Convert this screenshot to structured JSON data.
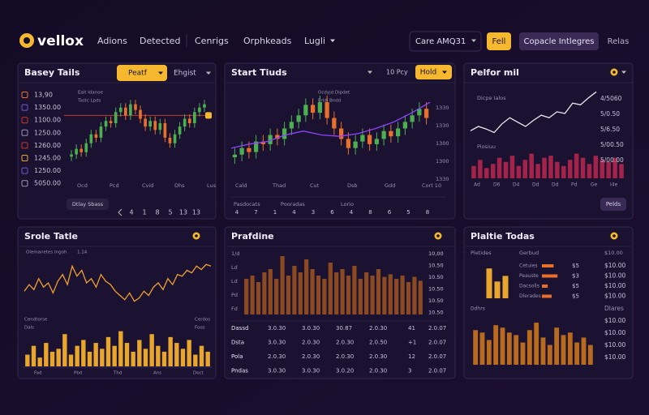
{
  "nav": {
    "brand": "vellox",
    "links": [
      "Adions",
      "Detected",
      "Cenrigs",
      "Orphkeads",
      "Lugli"
    ],
    "select": "Care AMQ31",
    "button": "Fell",
    "cta": "Copacle Intlegres",
    "extra": "Relas"
  },
  "panels": [
    {
      "title": "Basey Tails",
      "button": "Peatf",
      "dropdown": "Ehgist",
      "side_values": [
        "13,90",
        "1350.00",
        "1100.00",
        "1250.00",
        "1260.00",
        "1245.00",
        "1250.00",
        "5050.00"
      ],
      "legend": [
        "Ealt Idanoe",
        "Tastc Lpds"
      ],
      "x_labels": [
        "Ocd",
        "Pcd",
        "Cvid",
        "Dhs",
        "Lus"
      ],
      "footer": "Dtlay Sbass",
      "pages": [
        "4",
        "1",
        "8",
        "5",
        "13",
        "13"
      ],
      "charts": [
        {
          "type": "candle",
          "ylim": [
            0,
            80
          ],
          "up": "#4caf50",
          "down": "#e8702c",
          "level": 55,
          "level_color": "#c0392b",
          "open": [
            18,
            20,
            25,
            22,
            30,
            38,
            35,
            45,
            50,
            48,
            58,
            62,
            55,
            65,
            60,
            52,
            45,
            50,
            42,
            48,
            35,
            30,
            38,
            45,
            52,
            48,
            58,
            62
          ],
          "high": [
            24,
            29,
            29,
            34,
            42,
            42,
            49,
            54,
            54,
            62,
            66,
            66,
            69,
            69,
            64,
            56,
            54,
            54,
            52,
            52,
            39,
            42,
            49,
            56,
            56,
            62,
            66,
            69
          ],
          "low": [
            14,
            16,
            18,
            18,
            26,
            31,
            31,
            41,
            44,
            44,
            54,
            51,
            51,
            56,
            48,
            41,
            41,
            38,
            38,
            31,
            26,
            26,
            34,
            41,
            44,
            44,
            54,
            58
          ],
          "close": [
            20,
            25,
            22,
            30,
            38,
            35,
            45,
            50,
            48,
            58,
            62,
            55,
            65,
            60,
            52,
            45,
            50,
            42,
            48,
            35,
            30,
            38,
            45,
            52,
            48,
            58,
            62,
            65
          ]
        }
      ]
    },
    {
      "title": "Start Tiuds",
      "label": "10 Pcy",
      "button": "Hold",
      "legend": [
        "Ocdyjd Dipdet",
        "Erldi Bndd"
      ],
      "axis_labels": [
        "1330",
        "1330",
        "1300",
        "1300",
        "1330"
      ],
      "x_labels": [
        "Cald",
        "Thad",
        "Cut",
        "Dsb",
        "Gdd",
        "Cort 10"
      ],
      "footer": [
        "Pasdocats",
        "Pooradas",
        "Lorio"
      ],
      "pages": [
        "4",
        "7",
        "1",
        "4",
        "3",
        "6",
        "4",
        "8",
        "6",
        "5",
        "8"
      ],
      "charts": [
        {
          "type": "candle",
          "ylim": [
            15,
            80
          ],
          "up": "#4caf50",
          "down": "#e8702c",
          "open": [
            28,
            30,
            35,
            32,
            40,
            38,
            45,
            42,
            50,
            55,
            60,
            68,
            62,
            70,
            58,
            50,
            42,
            35,
            40,
            45,
            38,
            42,
            48,
            44,
            50,
            55,
            60,
            65
          ],
          "high": [
            35,
            40,
            40,
            45,
            45,
            50,
            50,
            55,
            60,
            65,
            73,
            73,
            75,
            75,
            63,
            55,
            47,
            45,
            50,
            50,
            47,
            53,
            53,
            55,
            60,
            65,
            70,
            70
          ],
          "low": [
            23,
            25,
            27,
            27,
            33,
            33,
            37,
            37,
            45,
            50,
            55,
            57,
            57,
            53,
            45,
            37,
            30,
            30,
            35,
            33,
            33,
            37,
            39,
            39,
            45,
            50,
            55,
            53
          ],
          "close": [
            30,
            35,
            32,
            40,
            38,
            45,
            42,
            50,
            55,
            60,
            68,
            62,
            70,
            58,
            50,
            42,
            35,
            40,
            45,
            38,
            42,
            48,
            44,
            50,
            55,
            60,
            65,
            58
          ]
        },
        {
          "type": "line",
          "ylim": [
            15,
            80
          ],
          "color": "#8e44ff",
          "values": [
            35,
            38,
            40,
            45,
            48,
            45,
            44,
            46,
            50,
            55,
            62,
            70
          ]
        }
      ]
    },
    {
      "title": "Pelfor mil",
      "labels": [
        "Dicpe Ialos",
        "Piosiuu"
      ],
      "axis_labels": [
        "4/5060",
        "5/0.50",
        "5/6.50",
        "5/00.50",
        "5/00.00"
      ],
      "x_labels": [
        "Ad",
        "D6",
        "D4",
        "Dd",
        "Dd",
        "Pd",
        "Ge",
        "I4e"
      ],
      "button": "Pelds",
      "charts": [
        {
          "type": "line",
          "ylim": [
            30,
            90
          ],
          "color": "#e8e8f0",
          "values": [
            40,
            45,
            42,
            38,
            48,
            55,
            50,
            45,
            52,
            58,
            55,
            62,
            60,
            72,
            70,
            78,
            85
          ]
        },
        {
          "type": "bar",
          "ylim": [
            0,
            75
          ],
          "color": "#a3234a",
          "values": [
            30,
            45,
            25,
            35,
            50,
            40,
            55,
            30,
            45,
            60,
            35,
            50,
            55,
            40,
            30,
            45,
            60,
            50,
            35,
            55,
            45,
            40,
            50,
            35
          ]
        }
      ]
    },
    {
      "title": "Srole Tatle",
      "labels": [
        "Olemanetes Ingoh",
        "1.14"
      ],
      "left_labels": [
        "Cendtorse",
        "Dals"
      ],
      "right_labels": [
        "Cerdos",
        "Foos"
      ],
      "x_labels": [
        "Fad",
        "Pbd",
        "Thd",
        "Ans",
        "Doct"
      ],
      "charts": [
        {
          "type": "line",
          "ylim": [
            20,
            80
          ],
          "color": "#f0a030",
          "values": [
            40,
            48,
            42,
            55,
            45,
            50,
            38,
            52,
            60,
            48,
            70,
            58,
            65,
            50,
            55,
            45,
            60,
            52,
            48,
            40,
            35,
            30,
            38,
            28,
            32,
            40,
            35,
            45,
            50,
            42,
            55,
            48,
            60,
            58,
            65,
            62,
            70,
            66,
            72,
            70
          ]
        },
        {
          "type": "bar",
          "ylim": [
            0,
            65
          ],
          "color": "#e8a62c",
          "values": [
            20,
            35,
            15,
            40,
            25,
            30,
            55,
            20,
            35,
            45,
            25,
            40,
            30,
            50,
            35,
            60,
            40,
            25,
            45,
            30,
            55,
            35,
            25,
            50,
            40,
            30,
            45,
            20,
            35,
            25
          ]
        }
      ]
    },
    {
      "title": "Prafdine",
      "left_labels": [
        "1/d",
        "Ld",
        "Ld",
        "Pd",
        "Fd"
      ],
      "axis_labels": [
        "10,00",
        "10.50",
        "10.50",
        "10.50",
        "10.50",
        "10.50"
      ],
      "table": [
        [
          "Dassd",
          "3.0.30",
          "3.0.30",
          "30.87",
          "2.0.30",
          "41",
          "2.0.07"
        ],
        [
          "Dsta",
          "3.0.30",
          "2.0.30",
          "2.0.30",
          "2.0.50",
          "+1",
          "2.0.07"
        ],
        [
          "Pola",
          "2.0.30",
          "2.0.30",
          "2.0.30",
          "2.0.30",
          "12",
          "2.0.07"
        ],
        [
          "Pndas",
          "3.0.30",
          "3.0.30",
          "3.0.20",
          "2.0.30",
          "3",
          "2.0.07"
        ]
      ],
      "charts": [
        {
          "type": "bar",
          "ylim": [
            0,
            95
          ],
          "color": "#8b4a22",
          "values": [
            55,
            60,
            50,
            65,
            70,
            55,
            90,
            60,
            75,
            65,
            85,
            70,
            60,
            55,
            80,
            65,
            70,
            60,
            75,
            55,
            65,
            60,
            70,
            58,
            62,
            55,
            60,
            50,
            58,
            52
          ]
        }
      ]
    },
    {
      "title": "Plaltie Todas",
      "header": [
        "Pletides",
        "Gerbud",
        "$10.00"
      ],
      "rows": [
        "Cetuies",
        "Peauste",
        "Dacsolls",
        "Dlerades"
      ],
      "row_values": [
        30,
        40,
        15,
        25
      ],
      "xlim": [
        0,
        50
      ],
      "row_color": "#e8702c",
      "row_mid": [
        "$5",
        "$3",
        "$5",
        "$5"
      ],
      "row_right": [
        "$10.00",
        "$10.00",
        "$10.00",
        "$10.00"
      ],
      "bottom_left": "Ddhrs",
      "bottom_right": [
        "Dlares",
        "$10.00",
        "$10.00",
        "$10.00",
        "$10.00"
      ],
      "charts": [
        {
          "type": "bar",
          "ylim": [
            0,
            100
          ],
          "color": "#e8a62c",
          "values": [
            80,
            45,
            60
          ]
        },
        {
          "type": "bar",
          "ylim": [
            0,
            95
          ],
          "color": "#b86a1e",
          "values": [
            70,
            65,
            50,
            80,
            75,
            65,
            60,
            45,
            70,
            85,
            55,
            40,
            75,
            60,
            65,
            45,
            55,
            40
          ]
        }
      ]
    }
  ]
}
